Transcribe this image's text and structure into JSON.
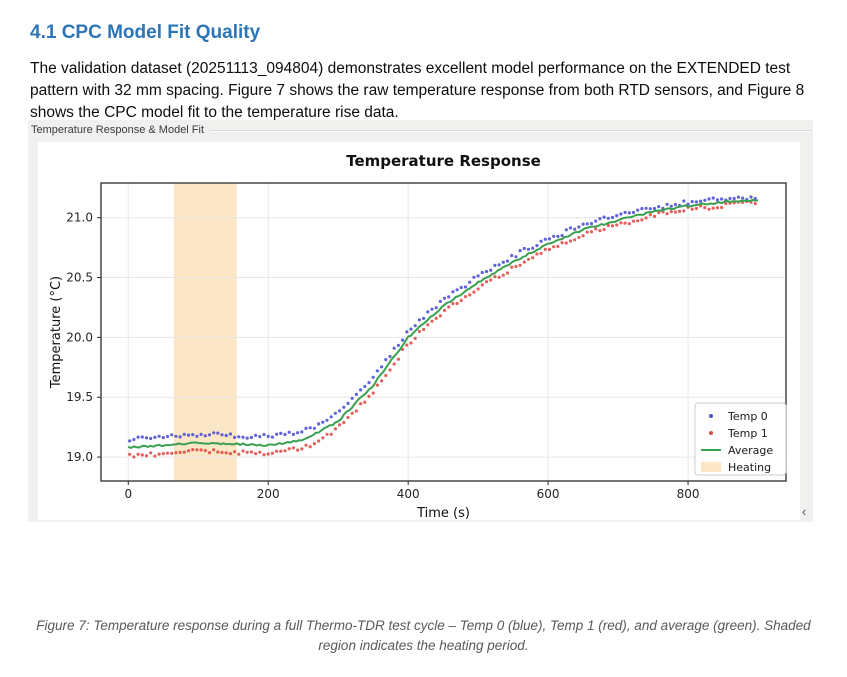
{
  "page": {
    "heading": "4.1 CPC Model Fit Quality",
    "paragraph": "The validation dataset (20251113_094804) demonstrates excellent model performance on the EXTENDED test pattern with 32 mm spacing. Figure 7 shows the raw temperature response from both RTD sensors, and Figure 8 shows the CPC model fit to the temperature rise data.",
    "caption": "Figure 7: Temperature response during a full Thermo-TDR test cycle – Temp 0 (blue), Temp 1 (red), and average (green). Shaded region indicates the heating period."
  },
  "widget": {
    "title": "Temperature Response & Model Fit",
    "collapse_chevron": "‹"
  },
  "colors": {
    "heading": "#2e75b6",
    "caption": "#595959",
    "panel_bg": "#f0f0ef",
    "grid": "#e6e6e6",
    "spine": "#2b2b2b",
    "tick_text": "#262626"
  },
  "chart_data": {
    "type": "scatter",
    "title": "Temperature Response",
    "xlabel": "Time (s)",
    "ylabel": "Temperature (°C)",
    "xlim": [
      -39,
      940
    ],
    "ylim": [
      18.8,
      21.29
    ],
    "grid": true,
    "xticks": {
      "values": [
        0,
        200,
        400,
        600,
        800
      ],
      "labels": [
        "0",
        "200",
        "400",
        "600",
        "800"
      ]
    },
    "yticks": {
      "values": [
        19.0,
        19.5,
        20.0,
        20.5,
        21.0
      ],
      "labels": [
        "19.0",
        "19.5",
        "20.0",
        "20.5",
        "21.0"
      ]
    },
    "heating_region": {
      "start": 65,
      "end": 155,
      "color": "#fbe7c6"
    },
    "sample_x": [
      0,
      50,
      100,
      150,
      200,
      250,
      300,
      350,
      400,
      450,
      500,
      550,
      600,
      650,
      700,
      750,
      800,
      850,
      900
    ],
    "series": [
      {
        "name": "Temp 0",
        "kind": "scatter",
        "color": "#4a4fd1",
        "values": [
          19.15,
          19.17,
          19.19,
          19.18,
          19.17,
          19.21,
          19.36,
          19.66,
          20.05,
          20.31,
          20.51,
          20.68,
          20.82,
          20.94,
          21.02,
          21.08,
          21.13,
          21.16,
          21.17
        ]
      },
      {
        "name": "Temp 1",
        "kind": "scatter",
        "color": "#e04a44",
        "values": [
          19.01,
          19.03,
          19.05,
          19.04,
          19.03,
          19.07,
          19.24,
          19.54,
          19.95,
          20.21,
          20.41,
          20.58,
          20.74,
          20.86,
          20.94,
          21.02,
          21.07,
          21.1,
          21.13
        ]
      },
      {
        "name": "Average",
        "kind": "line",
        "color": "#38a04e",
        "values": [
          19.08,
          19.1,
          19.12,
          19.11,
          19.1,
          19.14,
          19.3,
          19.6,
          20.0,
          20.26,
          20.46,
          20.63,
          20.78,
          20.9,
          20.98,
          21.05,
          21.1,
          21.13,
          21.15
        ]
      }
    ],
    "scatter_step_s": 6,
    "scatter_noise_c": 0.018,
    "line_noise_c": 0.008,
    "legend": {
      "position": "lower right",
      "entries": [
        {
          "label": "Temp 0",
          "marker": "dot",
          "color": "#4a4fd1"
        },
        {
          "label": "Temp 1",
          "marker": "dot",
          "color": "#e04a44"
        },
        {
          "label": "Average",
          "marker": "line",
          "color": "#38a04e"
        },
        {
          "label": "Heating",
          "marker": "patch",
          "color": "#fbe7c6"
        }
      ]
    }
  }
}
